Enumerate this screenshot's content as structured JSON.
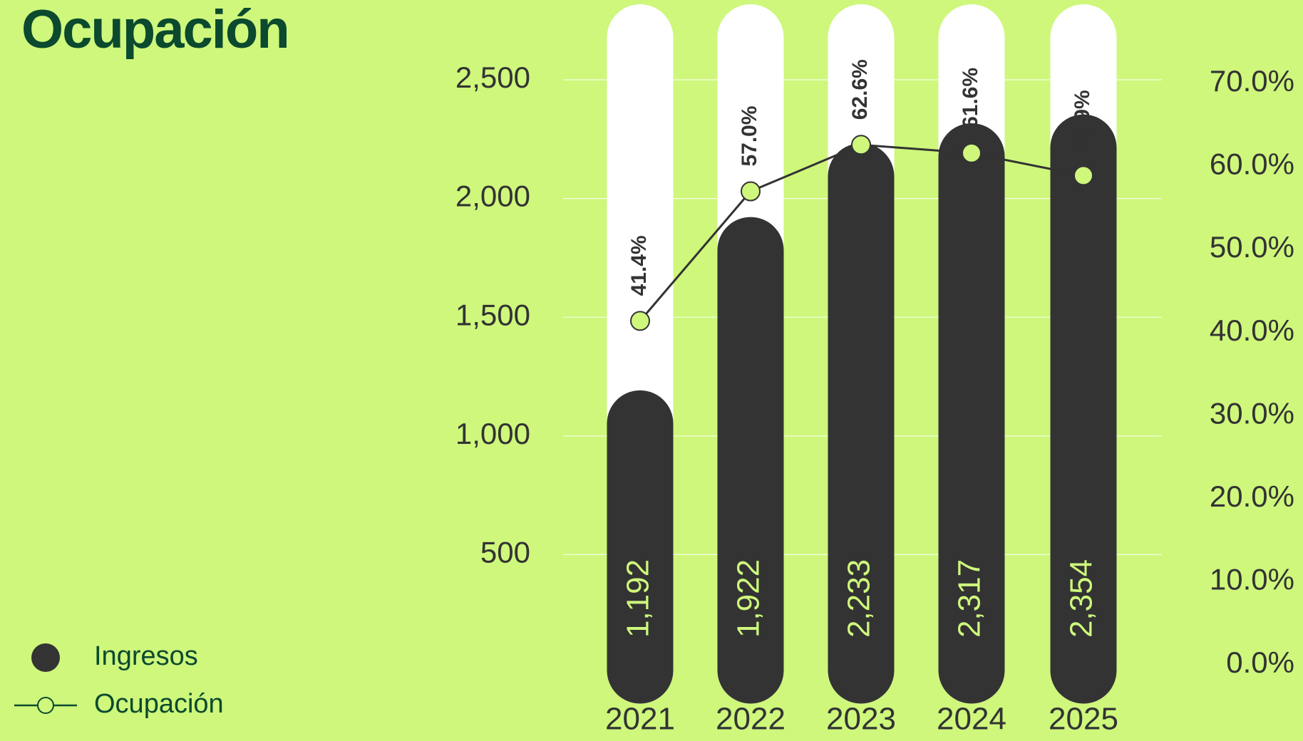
{
  "chart_data": {
    "type": "bar-line",
    "title": "Ocupación",
    "categories": [
      "2021",
      "2022",
      "2023",
      "2024",
      "2025"
    ],
    "series": [
      {
        "name": "Ingresos",
        "type": "bar",
        "color": "#333333",
        "values": [
          1192,
          1922,
          2233,
          2317,
          2354
        ],
        "value_labels": [
          "1,192",
          "1,922",
          "2,233",
          "2,317",
          "2,354"
        ]
      },
      {
        "name": "Ocupación",
        "type": "line",
        "axis": "y2",
        "color": "#333333",
        "values": [
          41.4,
          57.0,
          62.6,
          61.6,
          58.9
        ],
        "value_labels": [
          "41.4%",
          "57.0%",
          "62.6%",
          "61.6%",
          "58.9%"
        ]
      }
    ],
    "ylim": [
      0,
      2500
    ],
    "yticks": [
      500,
      {
        "value": 1000,
        "label": "1,000"
      },
      {
        "value": 1500,
        "label": "1,500"
      },
      {
        "value": 2000,
        "label": "2,000"
      },
      {
        "value": 2500,
        "label": "2,500"
      }
    ],
    "y2lim": [
      0,
      70
    ],
    "y2ticks": [
      {
        "value": 0,
        "label": "0.0%"
      },
      {
        "value": 10,
        "label": "10.0%"
      },
      {
        "value": 20,
        "label": "20.0%"
      },
      {
        "value": 30,
        "label": "30.0%"
      },
      {
        "value": 40,
        "label": "40.0%"
      },
      {
        "value": 50,
        "label": "50.0%"
      },
      {
        "value": 60,
        "label": "60.0%"
      },
      {
        "value": 70,
        "label": "70.0%"
      }
    ],
    "grid": true,
    "legend": "bottom-left"
  }
}
